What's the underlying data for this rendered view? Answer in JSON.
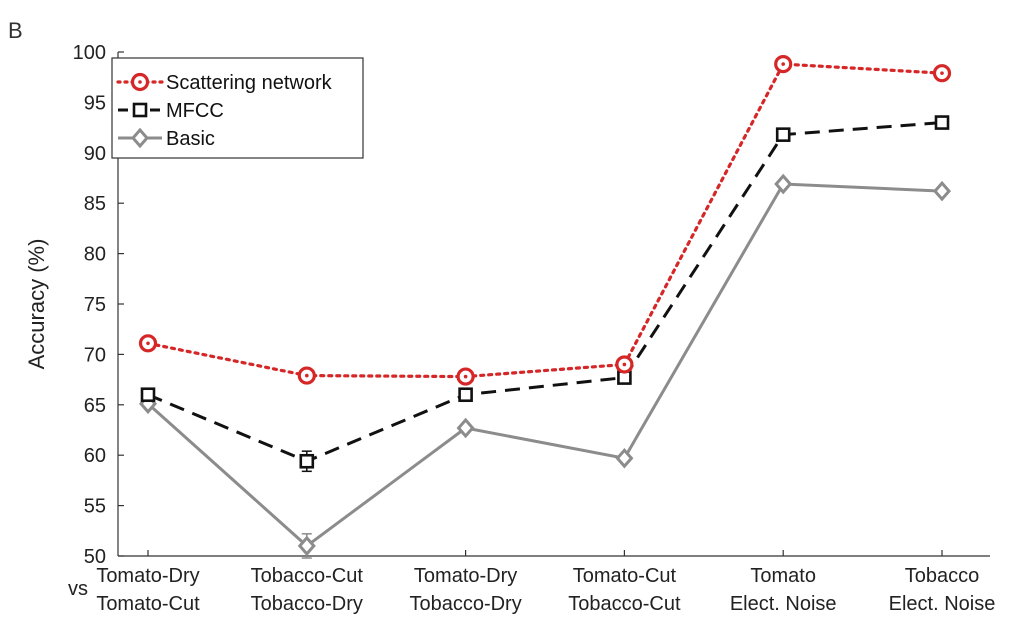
{
  "panel_label": "B",
  "chart_data": {
    "type": "line",
    "title": "",
    "xlabel": "",
    "ylabel": "Accuracy (%)",
    "ylim": [
      50,
      100
    ],
    "yticks": [
      50,
      55,
      60,
      65,
      70,
      75,
      80,
      85,
      90,
      95,
      100
    ],
    "vs_label": "vs",
    "categories": [
      [
        "Tomato-Dry",
        "Tomato-Cut"
      ],
      [
        "Tobacco-Cut",
        "Tobacco-Dry"
      ],
      [
        "Tomato-Dry",
        "Tobacco-Dry"
      ],
      [
        "Tomato-Cut",
        "Tobacco-Cut"
      ],
      [
        "Tomato",
        "Elect. Noise"
      ],
      [
        "Tobacco",
        "Elect. Noise"
      ]
    ],
    "legend_position": "top-left",
    "series": [
      {
        "name": "Scattering network",
        "values": [
          71.1,
          67.9,
          67.8,
          69.0,
          98.8,
          97.9
        ],
        "color": "#d62728",
        "dash": "dotted",
        "marker": "circle-dot"
      },
      {
        "name": "MFCC",
        "values": [
          66.0,
          59.4,
          66.0,
          67.7,
          91.8,
          93.0
        ],
        "color": "#111111",
        "dash": "dashed",
        "marker": "square",
        "errors": [
          0,
          1.0,
          0,
          0,
          0,
          0
        ]
      },
      {
        "name": "Basic",
        "values": [
          65.1,
          51.0,
          62.7,
          59.7,
          86.9,
          86.2
        ],
        "color": "#8c8c8c",
        "dash": "solid",
        "marker": "diamond",
        "errors": [
          0,
          1.2,
          0,
          0,
          0,
          0
        ]
      }
    ]
  }
}
